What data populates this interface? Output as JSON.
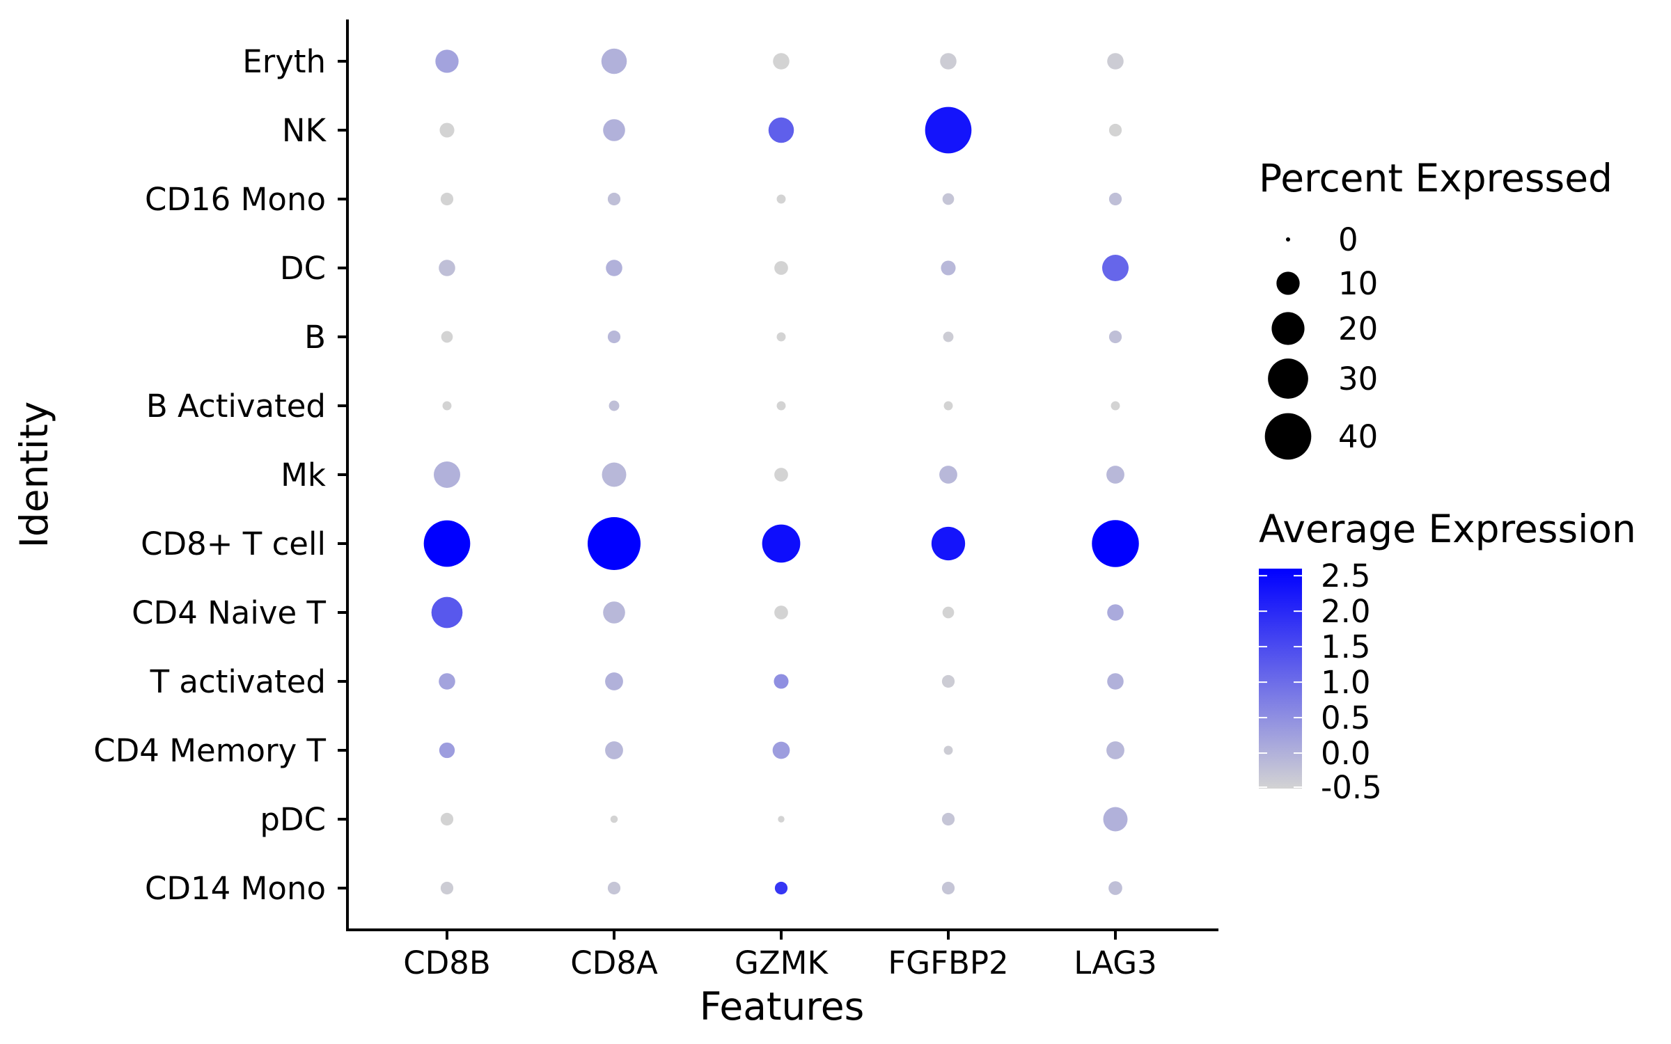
{
  "chart_data": {
    "type": "dotplot",
    "xlabel": "Features",
    "ylabel": "Identity",
    "features": [
      "CD8B",
      "CD8A",
      "GZMK",
      "FGFBP2",
      "LAG3"
    ],
    "identities": [
      "Eryth",
      "NK",
      "CD16 Mono",
      "DC",
      "B",
      "B Activated",
      "Mk",
      "CD8+ T cell",
      "CD4 Naive T",
      "T activated",
      "CD4 Memory T",
      "pDC",
      "CD14 Mono"
    ],
    "percent_expressed": [
      [
        10,
        12,
        5,
        5,
        5
      ],
      [
        4,
        9,
        12,
        40,
        3
      ],
      [
        3,
        3,
        1.5,
        2.5,
        3
      ],
      [
        5,
        5,
        3.5,
        4,
        13
      ],
      [
        2.5,
        3,
        1.5,
        2,
        3
      ],
      [
        1.5,
        2,
        1.5,
        1.5,
        1.5
      ],
      [
        13,
        11,
        3.5,
        6,
        6
      ],
      [
        40,
        52,
        27,
        21,
        41
      ],
      [
        18,
        9,
        3.5,
        2.5,
        5
      ],
      [
        5,
        6,
        4,
        3,
        5
      ],
      [
        4.5,
        6,
        5.5,
        1.5,
        6
      ],
      [
        3,
        1,
        0.8,
        3,
        11
      ],
      [
        3,
        3,
        3,
        3,
        3.5
      ]
    ],
    "average_expression": [
      [
        0.2,
        0.0,
        -0.5,
        -0.4,
        -0.4
      ],
      [
        -0.5,
        0.0,
        1.2,
        2.3,
        -0.5
      ],
      [
        -0.5,
        -0.2,
        -0.5,
        -0.3,
        -0.2
      ],
      [
        -0.2,
        0.0,
        -0.5,
        -0.1,
        1.1
      ],
      [
        -0.5,
        -0.1,
        -0.5,
        -0.4,
        -0.2
      ],
      [
        -0.5,
        -0.2,
        -0.5,
        -0.5,
        -0.5
      ],
      [
        0.0,
        -0.1,
        -0.5,
        -0.1,
        -0.1
      ],
      [
        2.6,
        2.6,
        2.4,
        2.3,
        2.6
      ],
      [
        1.3,
        -0.1,
        -0.5,
        -0.5,
        0.1
      ],
      [
        0.2,
        0.0,
        0.5,
        -0.4,
        0.0
      ],
      [
        0.3,
        -0.1,
        0.3,
        -0.4,
        -0.1
      ],
      [
        -0.5,
        -0.5,
        -0.5,
        -0.3,
        0.0
      ],
      [
        -0.4,
        -0.3,
        1.8,
        -0.3,
        -0.2
      ]
    ],
    "size_legend": {
      "title": "Percent Expressed",
      "values": [
        0,
        10,
        20,
        30,
        40
      ]
    },
    "color_legend": {
      "title": "Average Expression",
      "ticks": [
        2.5,
        2.0,
        1.5,
        1.0,
        0.5,
        0.0,
        -0.5
      ],
      "tick_labels": [
        "2.5",
        "2.0",
        "1.5",
        "1.0",
        "0.5",
        "0.0",
        "-0.5"
      ],
      "range": [
        -0.5,
        2.6
      ],
      "low_color": "#d3d3d3",
      "high_color": "#0000ff"
    }
  }
}
